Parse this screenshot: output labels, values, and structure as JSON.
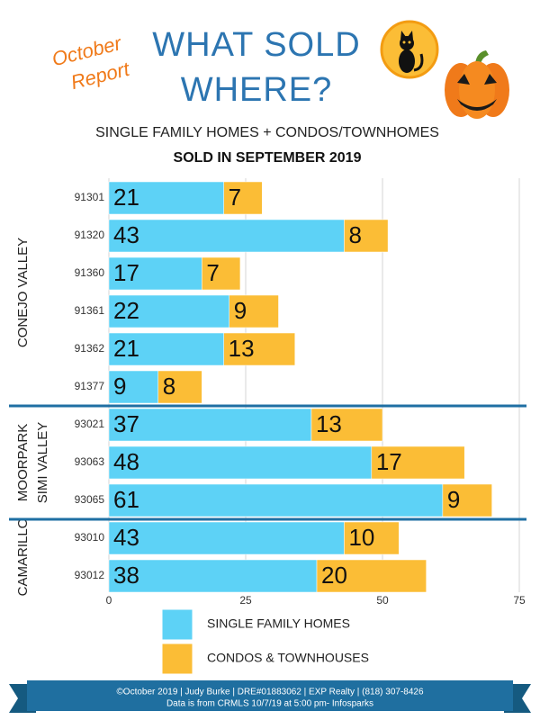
{
  "badge": [
    "October",
    "Report"
  ],
  "footer": [
    "©October 2019  |  Judy Burke  |  DRE#01883062  |  EXP Realty  |  (818) 307-8426",
    "Data is from CRMLS 10/7/19 at 5:00 pm- Infosparks"
  ],
  "chart_data": {
    "type": "bar",
    "orientation": "horizontal",
    "stacked": true,
    "title": [
      "WHAT SOLD",
      "WHERE?"
    ],
    "subtitle": [
      "SINGLE FAMILY HOMES + CONDOS/TOWNHOMES",
      "SOLD IN SEPTEMBER 2019"
    ],
    "categories": [
      "91301",
      "91320",
      "91360",
      "91361",
      "91362",
      "91377",
      "93021",
      "93063",
      "93065",
      "93010",
      "93012"
    ],
    "groups": [
      {
        "label": [
          "CONEJO VALLEY"
        ]
      },
      {
        "label": [
          "MOORPARK",
          "SIMI VALLEY"
        ]
      },
      {
        "label": [
          "CAMARILLO"
        ]
      }
    ],
    "series": [
      {
        "name": "SINGLE FAMILY HOMES",
        "color": "#5dd2f6",
        "values": [
          21,
          43,
          17,
          22,
          21,
          9,
          37,
          48,
          61,
          43,
          38
        ]
      },
      {
        "name": "CONDOS & TOWNHOUSES",
        "color": "#fbbd36",
        "values": [
          7,
          8,
          7,
          9,
          13,
          8,
          13,
          17,
          9,
          10,
          20
        ]
      }
    ],
    "xlim": [
      0,
      75
    ],
    "xticks": [
      0,
      25,
      50,
      75
    ],
    "grid": true
  }
}
